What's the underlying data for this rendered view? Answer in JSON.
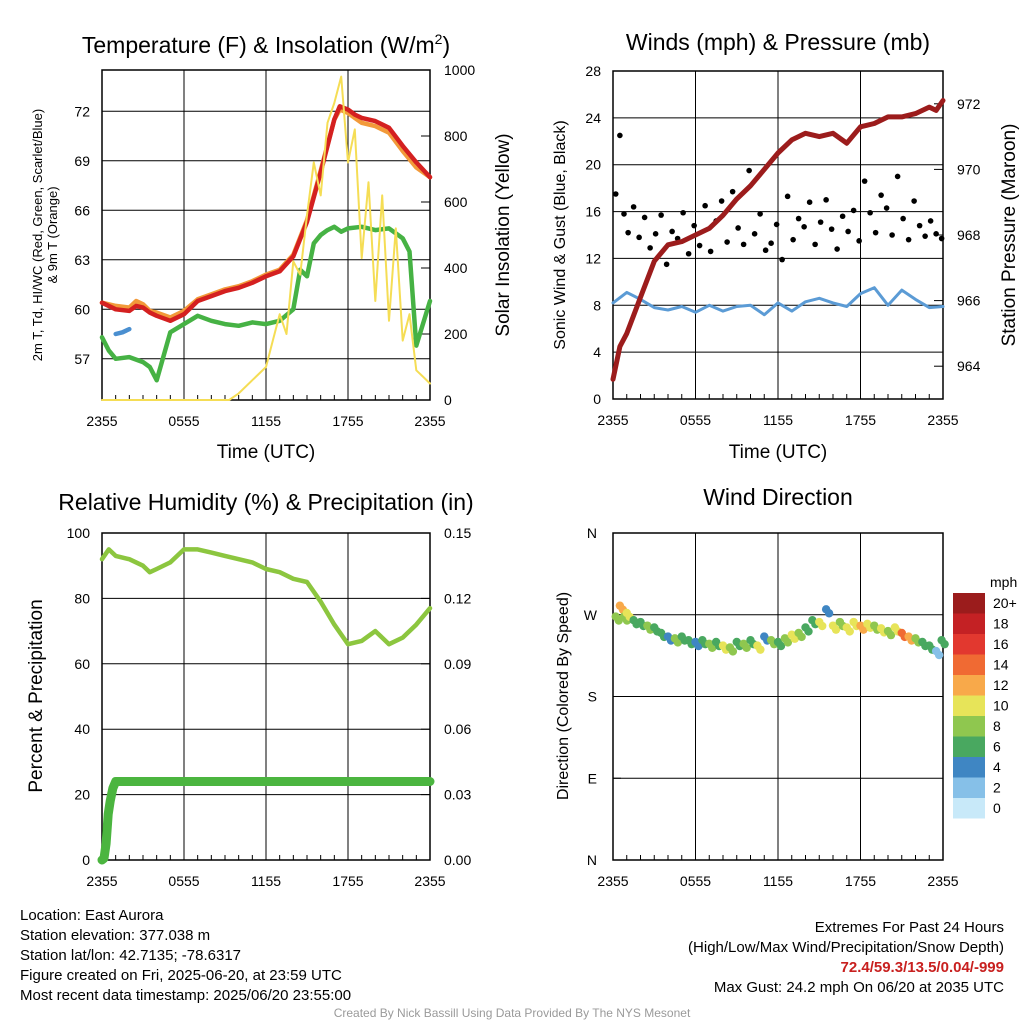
{
  "colors": {
    "red": "#d42020",
    "orange": "#f29a3a",
    "green": "#46b244",
    "blue_td": "#4a8fd0",
    "yellow": "#f5dd55",
    "wind": "#5b9bd5",
    "gust": "#000000",
    "pressure": "#9c1c1c",
    "rh": "#8cc63f",
    "precip": "#4bb53f"
  },
  "x_ticks": [
    "2355",
    "0555",
    "1155",
    "1755",
    "2355"
  ],
  "chart_data": [
    {
      "id": "temp",
      "type": "line",
      "title": "Temperature (F) & Insolation (W/m²)",
      "title_main": "Temperature (F) & Insolation (W/m",
      "title_sup": "2",
      "title_end": ")",
      "xlabel": "Time (UTC)",
      "ylabel_line1": "2m T, Td, HI/WC (Red, Green, Scarlet/Blue)",
      "ylabel_line2": "& 9m T (Orange)",
      "ylabel_right": "Solar Insolation (Yellow)",
      "ylim": [
        54.5,
        74.5
      ],
      "y_ticks": [
        57,
        60,
        63,
        66,
        69,
        72
      ],
      "y2lim": [
        0,
        1000
      ],
      "y2_ticks": [
        0,
        200,
        400,
        600,
        800,
        1000
      ],
      "x_hours": [
        0,
        24
      ],
      "series": [
        {
          "key": "orange",
          "color_key": "orange",
          "x": [
            0,
            1,
            2,
            2.5,
            3,
            3.5,
            4,
            5,
            6,
            7,
            8,
            9,
            10,
            11,
            12,
            13,
            14,
            15,
            16,
            17,
            17.4,
            18,
            18.5,
            19,
            20,
            21,
            22,
            23,
            24
          ],
          "y": [
            60.4,
            60.2,
            60.1,
            60.5,
            60.3,
            59.9,
            59.8,
            59.5,
            59.9,
            60.6,
            60.9,
            61.2,
            61.4,
            61.7,
            62.1,
            62.4,
            63.3,
            65.4,
            68.4,
            71.5,
            72.1,
            71.9,
            71.6,
            71.3,
            71.1,
            70.7,
            69.6,
            68.6,
            68.0
          ]
        },
        {
          "key": "red",
          "color_key": "red",
          "x": [
            0,
            1,
            2,
            2.5,
            3,
            3.5,
            4,
            5,
            6,
            7,
            8,
            9,
            10,
            11,
            12,
            13,
            14,
            15,
            16,
            17,
            17.4,
            18,
            18.5,
            19,
            20,
            21,
            22,
            23,
            24
          ],
          "y": [
            60.4,
            60.0,
            59.9,
            60.2,
            60.1,
            59.8,
            59.6,
            59.3,
            59.7,
            60.5,
            60.8,
            61.1,
            61.3,
            61.6,
            62.0,
            62.3,
            63.2,
            65.3,
            68.3,
            71.5,
            72.3,
            72.1,
            71.8,
            71.6,
            71.4,
            71.0,
            69.9,
            68.9,
            68.0
          ]
        },
        {
          "key": "dewpoint",
          "color_key": "green",
          "x": [
            0,
            0.5,
            1,
            2,
            3,
            3.5,
            4,
            5,
            6,
            7,
            8,
            9,
            10,
            11,
            12,
            13,
            14,
            14.5,
            15,
            15.5,
            16,
            16.5,
            17,
            17.5,
            18,
            19,
            20,
            21,
            22,
            22.5,
            23,
            24
          ],
          "y": [
            58.3,
            57.5,
            57.0,
            57.1,
            56.8,
            56.5,
            55.7,
            58.6,
            59.1,
            59.6,
            59.3,
            59.1,
            59.0,
            59.2,
            59.1,
            59.3,
            60.0,
            62.4,
            62.0,
            64.0,
            64.5,
            64.8,
            65.0,
            64.7,
            64.9,
            65.0,
            64.8,
            64.9,
            64.3,
            63.5,
            57.8,
            60.5
          ]
        },
        {
          "key": "dewpoint_blue",
          "color_key": "blue_td",
          "x": [
            1.0,
            1.5,
            2.0
          ],
          "y": [
            58.5,
            58.6,
            58.8
          ]
        },
        {
          "key": "insolation",
          "color_key": "yellow",
          "axis": "right",
          "x": [
            0,
            9.3,
            10,
            11,
            12,
            12.5,
            13,
            13.5,
            14,
            14.5,
            15,
            15.5,
            16,
            16.5,
            17,
            17.5,
            18,
            18.5,
            19,
            19.5,
            20,
            20.5,
            21,
            21.5,
            22,
            22.5,
            23,
            23.5,
            24
          ],
          "y": [
            0,
            0,
            20,
            60,
            100,
            180,
            260,
            200,
            420,
            380,
            560,
            720,
            620,
            840,
            900,
            980,
            720,
            820,
            430,
            660,
            300,
            620,
            240,
            520,
            180,
            260,
            90,
            70,
            50
          ]
        }
      ]
    },
    {
      "id": "wind",
      "type": "line",
      "title": "Winds (mph) & Pressure (mb)",
      "xlabel": "Time (UTC)",
      "ylabel": "Sonic Wind & Gust (Blue, Black)",
      "ylabel_right": "Station Pressure (Maroon)",
      "ylim": [
        0,
        28
      ],
      "y_ticks": [
        0,
        4,
        8,
        12,
        16,
        20,
        24,
        28
      ],
      "y2lim": [
        963,
        973
      ],
      "y2_ticks": [
        964,
        966,
        968,
        970,
        972
      ],
      "x_hours": [
        0,
        24
      ],
      "series": [
        {
          "key": "wind_speed",
          "color_key": "wind",
          "x": [
            0,
            1,
            2,
            3,
            4,
            5,
            6,
            7,
            8,
            9,
            10,
            11,
            12,
            13,
            14,
            15,
            16,
            17,
            18,
            19,
            20,
            21,
            22,
            23,
            24
          ],
          "y": [
            8.2,
            9.1,
            8.5,
            7.8,
            7.6,
            7.9,
            7.4,
            8.0,
            7.5,
            7.9,
            8.0,
            7.2,
            8.2,
            7.5,
            8.3,
            8.6,
            8.2,
            7.9,
            9.0,
            9.5,
            8.0,
            9.3,
            8.5,
            7.8,
            7.9
          ]
        },
        {
          "key": "gust",
          "color_key": "gust",
          "type": "scatter",
          "x": [
            0.2,
            0.5,
            0.8,
            1.1,
            1.5,
            1.9,
            2.3,
            2.7,
            3.1,
            3.5,
            3.9,
            4.3,
            4.7,
            5.1,
            5.5,
            5.9,
            6.3,
            6.7,
            7.1,
            7.5,
            7.9,
            8.3,
            8.7,
            9.1,
            9.5,
            9.9,
            10.3,
            10.7,
            11.1,
            11.5,
            11.9,
            12.3,
            12.7,
            13.1,
            13.5,
            13.9,
            14.3,
            14.7,
            15.1,
            15.5,
            15.9,
            16.3,
            16.7,
            17.1,
            17.5,
            17.9,
            18.3,
            18.7,
            19.1,
            19.5,
            19.9,
            20.3,
            20.7,
            21.1,
            21.5,
            21.9,
            22.3,
            22.7,
            23.1,
            23.5,
            23.9
          ],
          "y": [
            17.5,
            22.5,
            15.8,
            14.2,
            16.4,
            13.8,
            15.5,
            12.9,
            14.1,
            15.7,
            11.5,
            14.3,
            13.7,
            15.9,
            12.4,
            14.8,
            13.1,
            16.5,
            12.6,
            15.2,
            16.9,
            13.4,
            17.7,
            14.6,
            13.2,
            19.5,
            14.1,
            15.8,
            12.7,
            13.3,
            14.9,
            11.9,
            17.3,
            13.6,
            15.4,
            14.7,
            16.8,
            13.2,
            15.1,
            17.0,
            14.5,
            12.8,
            15.6,
            14.3,
            16.1,
            13.5,
            18.6,
            15.9,
            14.2,
            17.4,
            16.3,
            14.0,
            19.0,
            15.4,
            13.6,
            16.9,
            14.8,
            13.9,
            15.2,
            14.1,
            13.7
          ]
        },
        {
          "key": "pressure",
          "color_key": "pressure",
          "axis": "right",
          "x": [
            0,
            0.5,
            1,
            2,
            3,
            4,
            5,
            6,
            7,
            8,
            9,
            10,
            11,
            12,
            13,
            14,
            15,
            16,
            17,
            18,
            19,
            20,
            21,
            22,
            23,
            23.5,
            24
          ],
          "y": [
            963.6,
            964.6,
            965.0,
            966.1,
            967.2,
            967.7,
            967.8,
            968.0,
            968.2,
            968.6,
            969.1,
            969.5,
            970.0,
            970.5,
            970.9,
            971.1,
            971.0,
            971.1,
            970.8,
            971.3,
            971.4,
            971.6,
            971.6,
            971.7,
            971.9,
            971.8,
            972.1
          ]
        }
      ]
    },
    {
      "id": "rh",
      "type": "line",
      "title": "Relative Humidity (%) & Precipitation (in)",
      "ylabel": "Percent & Precipitation",
      "ylim": [
        0,
        100
      ],
      "y_ticks": [
        0,
        20,
        40,
        60,
        80,
        100
      ],
      "y2lim": [
        0,
        0.15
      ],
      "y2_ticks": [
        "0.00",
        "0.03",
        "0.06",
        "0.09",
        "0.12",
        "0.15"
      ],
      "x_hours": [
        0,
        24
      ],
      "series": [
        {
          "key": "rh",
          "color_key": "rh",
          "x": [
            0,
            0.5,
            1,
            2,
            3,
            3.5,
            4,
            5,
            6,
            7,
            8,
            9,
            10,
            11,
            12,
            13,
            14,
            15,
            16,
            17,
            18,
            19,
            20,
            21,
            22,
            23,
            24
          ],
          "y": [
            92,
            95,
            93,
            92,
            90,
            88,
            89,
            91,
            95,
            95,
            94,
            93,
            92,
            91,
            89,
            88,
            86,
            85,
            79,
            72,
            66,
            67,
            70,
            66,
            68,
            72,
            77
          ]
        },
        {
          "key": "precip",
          "color_key": "precip",
          "x": [
            0,
            0.15,
            0.3,
            0.45,
            0.6,
            0.8,
            1,
            2,
            4,
            8,
            12,
            16,
            20,
            24
          ],
          "y": [
            0,
            0.5,
            5,
            14,
            18,
            22,
            24,
            24,
            24,
            24,
            24,
            24,
            24,
            24
          ]
        }
      ]
    },
    {
      "id": "dir",
      "type": "scatter",
      "title": "Wind Direction",
      "ylabel": "Direction (Colored By Speed)",
      "y_ticks": [
        "N",
        "E",
        "S",
        "W",
        "N"
      ],
      "ylim": [
        0,
        360
      ],
      "x_hours": [
        0,
        24
      ],
      "series": [
        {
          "key": "direction",
          "x": [
            0.2,
            0.5,
            0.8,
            1.0,
            1.5,
            2.0,
            2.5,
            3.0,
            3.5,
            4.0,
            4.5,
            5.0,
            5.5,
            6.0,
            6.5,
            7.0,
            7.5,
            8.0,
            8.5,
            9.0,
            9.5,
            10.0,
            10.5,
            11.0,
            11.5,
            12.0,
            12.5,
            13.0,
            13.5,
            14.0,
            14.5,
            15.0,
            15.5,
            16.0,
            16.5,
            17.0,
            17.5,
            18.0,
            18.5,
            19.0,
            19.5,
            20.0,
            20.5,
            21.0,
            21.5,
            22.0,
            22.5,
            23.0,
            23.5,
            23.9
          ],
          "y": [
            268,
            280,
            268,
            272,
            264,
            262,
            258,
            256,
            250,
            246,
            244,
            246,
            242,
            240,
            242,
            238,
            240,
            236,
            234,
            240,
            238,
            242,
            236,
            246,
            242,
            240,
            244,
            248,
            250,
            256,
            264,
            262,
            276,
            258,
            262,
            256,
            262,
            258,
            260,
            258,
            255,
            252,
            256,
            250,
            246,
            244,
            240,
            236,
            230,
            242
          ],
          "speed": [
            9,
            12,
            8,
            10,
            6,
            7,
            8,
            6,
            7,
            4,
            8,
            7,
            6,
            5,
            7,
            8,
            6,
            11,
            9,
            7,
            8,
            6,
            10,
            5,
            8,
            7,
            9,
            11,
            8,
            6,
            7,
            10,
            5,
            11,
            9,
            10,
            11,
            12,
            10,
            9,
            10,
            9,
            11,
            14,
            12,
            8,
            7,
            6,
            3,
            6
          ]
        }
      ],
      "legend": {
        "title": "mph",
        "labels": [
          "20+",
          "18",
          "16",
          "14",
          "12",
          "10",
          "8",
          "6",
          "4",
          "2",
          "0"
        ],
        "colors": [
          "#9b1c1c",
          "#c42124",
          "#e2382f",
          "#f06a33",
          "#f8a94a",
          "#e7e459",
          "#8fc74f",
          "#49a860",
          "#3f86c3",
          "#86c0e8",
          "#c8e9f9"
        ]
      }
    }
  ],
  "footer": {
    "location": "Location: East Aurora",
    "elevation": "Station elevation: 377.038 m",
    "latlon": "Station lat/lon: 42.7135; -78.6317",
    "created": "Figure created on Fri, 2025-06-20, at 23:59 UTC",
    "recent": "Most recent data timestamp: 2025/06/20 23:55:00",
    "extremes_title": "Extremes For Past 24 Hours",
    "extremes_sub": "(High/Low/Max Wind/Precipitation/Snow Depth)",
    "extremes_values": "72.4/59.3/13.5/0.04/-999",
    "max_gust": "Max Gust: 24.2 mph On 06/20 at 2035 UTC",
    "credit": "Created By Nick Bassill Using Data Provided By The NYS Mesonet"
  }
}
